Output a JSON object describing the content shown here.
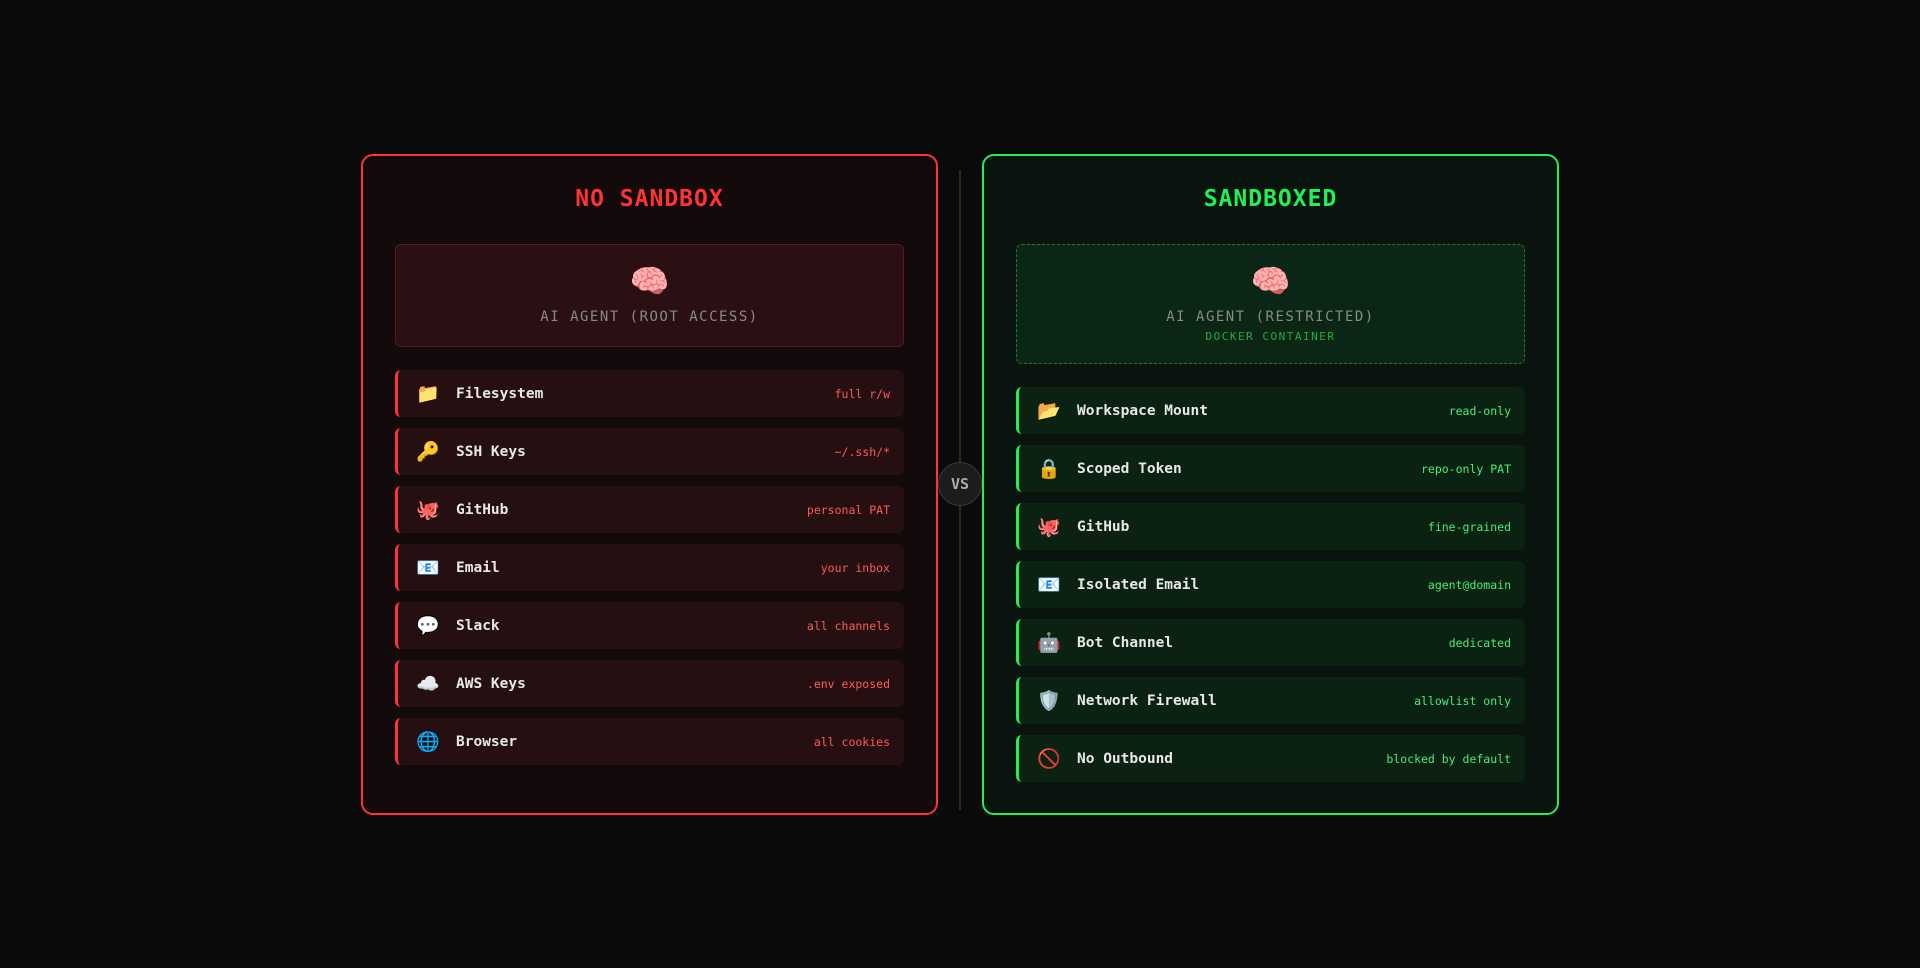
{
  "vs_label": "VS",
  "colors": {
    "danger": "#ff3333",
    "safe": "#22ee55"
  },
  "no_sandbox": {
    "title": "NO SANDBOX",
    "agent": {
      "icon": "🧠",
      "label": "AI AGENT (ROOT ACCESS)"
    },
    "items": [
      {
        "icon": "📁",
        "label": "Filesystem",
        "value": "full r/w"
      },
      {
        "icon": "🔑",
        "label": "SSH Keys",
        "value": "~/.ssh/*"
      },
      {
        "icon": "🐙",
        "label": "GitHub",
        "value": "personal PAT"
      },
      {
        "icon": "📧",
        "label": "Email",
        "value": "your inbox"
      },
      {
        "icon": "💬",
        "label": "Slack",
        "value": "all channels"
      },
      {
        "icon": "☁️",
        "label": "AWS Keys",
        "value": ".env exposed"
      },
      {
        "icon": "🌐",
        "label": "Browser",
        "value": "all cookies"
      }
    ]
  },
  "sandboxed": {
    "title": "SANDBOXED",
    "agent": {
      "icon": "🧠",
      "label": "AI AGENT (RESTRICTED)",
      "sublabel": "DOCKER CONTAINER"
    },
    "items": [
      {
        "icon": "📂",
        "label": "Workspace Mount",
        "value": "read-only"
      },
      {
        "icon": "🔒",
        "label": "Scoped Token",
        "value": "repo-only PAT"
      },
      {
        "icon": "🐙",
        "label": "GitHub",
        "value": "fine-grained"
      },
      {
        "icon": "📧",
        "label": "Isolated Email",
        "value": "agent@domain"
      },
      {
        "icon": "🤖",
        "label": "Bot Channel",
        "value": "dedicated"
      },
      {
        "icon": "🛡️",
        "label": "Network Firewall",
        "value": "allowlist only"
      },
      {
        "icon": "🚫",
        "label": "No Outbound",
        "value": "blocked by default"
      }
    ]
  }
}
